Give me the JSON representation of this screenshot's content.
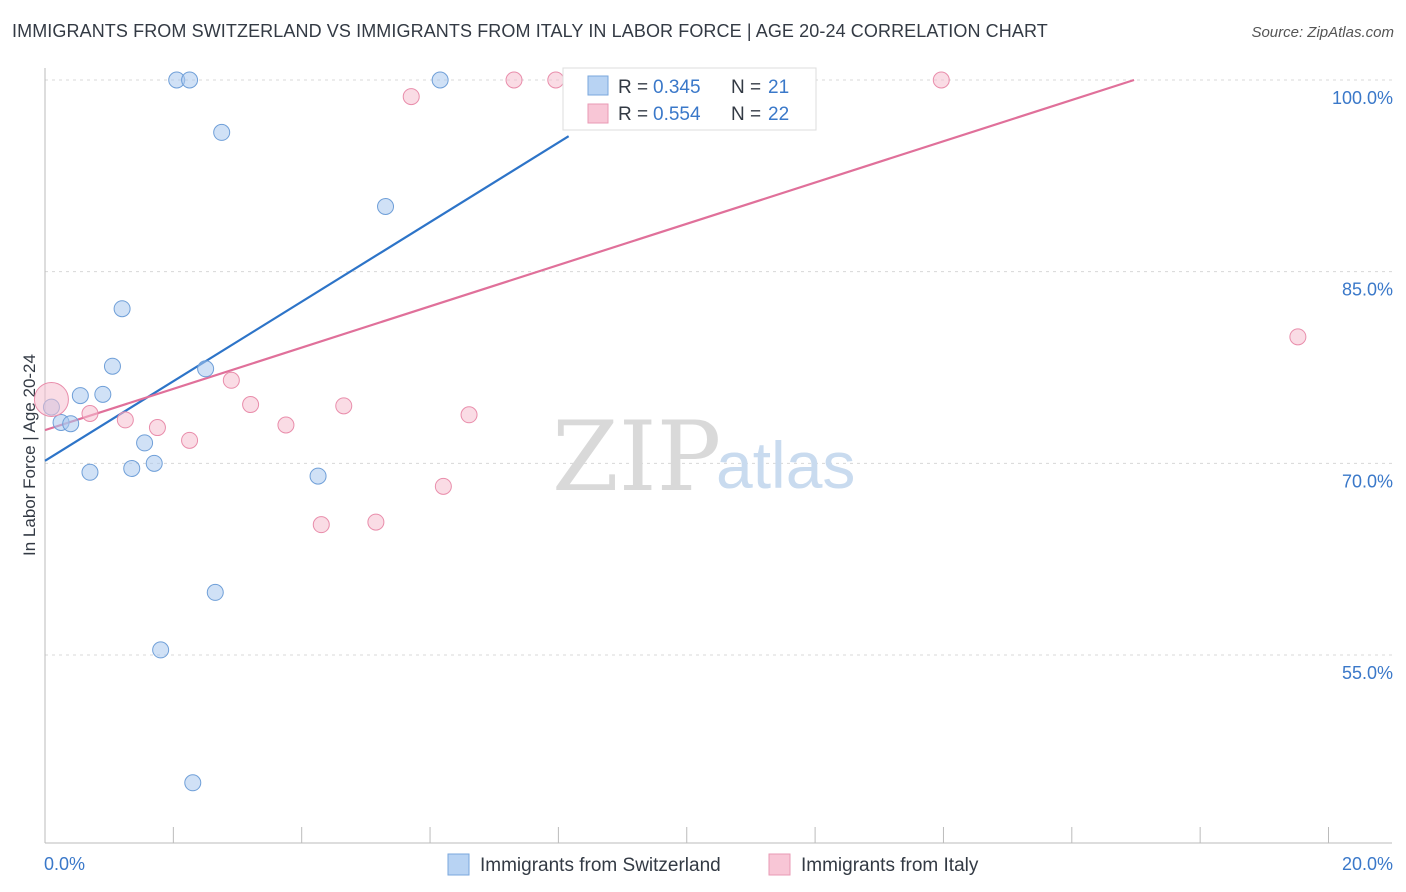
{
  "header": {
    "title": "IMMIGRANTS FROM SWITZERLAND VS IMMIGRANTS FROM ITALY IN LABOR FORCE | AGE 20-24 CORRELATION CHART",
    "source": "Source: ZipAtlas.com"
  },
  "watermark": {
    "zip": "ZIP",
    "atlas": "atlas"
  },
  "chart_data": {
    "type": "scatter",
    "ylabel": "In Labor Force | Age 20-24",
    "xlim": [
      0,
      20
    ],
    "ylim": [
      43,
      103
    ],
    "x_tick_labels": [
      {
        "value": 0,
        "label": "0.0%"
      },
      {
        "value": 20,
        "label": "20.0%"
      }
    ],
    "y_tick_labels": [
      {
        "value": 100,
        "label": "100.0%"
      },
      {
        "value": 85,
        "label": "85.0%"
      },
      {
        "value": 70,
        "label": "70.0%"
      },
      {
        "value": 55,
        "label": "55.0%"
      }
    ],
    "y_gridlines": [
      100,
      85,
      70,
      55
    ],
    "x_minor_ticks": [
      2,
      4,
      6,
      8,
      10,
      12,
      14,
      16,
      18,
      20
    ],
    "grid": true,
    "legend_position": "bottom",
    "series": [
      {
        "name": "Immigrants from Switzerland",
        "color": "#a9c9ef",
        "stroke": "#6f9fd8",
        "line_color": "#2d74c8",
        "R": "0.345",
        "N": "21",
        "points": [
          {
            "x": 2.05,
            "y": 100.0
          },
          {
            "x": 2.25,
            "y": 100.0
          },
          {
            "x": 6.15,
            "y": 100.0
          },
          {
            "x": 2.75,
            "y": 95.9
          },
          {
            "x": 5.3,
            "y": 90.1
          },
          {
            "x": 1.2,
            "y": 82.1
          },
          {
            "x": 1.05,
            "y": 77.6
          },
          {
            "x": 2.5,
            "y": 77.4
          },
          {
            "x": 0.55,
            "y": 75.3
          },
          {
            "x": 0.9,
            "y": 75.4
          },
          {
            "x": 0.1,
            "y": 74.4
          },
          {
            "x": 0.25,
            "y": 73.2
          },
          {
            "x": 0.4,
            "y": 73.1
          },
          {
            "x": 1.55,
            "y": 71.6
          },
          {
            "x": 1.7,
            "y": 70.0
          },
          {
            "x": 1.35,
            "y": 69.6
          },
          {
            "x": 0.7,
            "y": 69.3
          },
          {
            "x": 4.25,
            "y": 69.0
          },
          {
            "x": 2.65,
            "y": 59.9
          },
          {
            "x": 1.8,
            "y": 55.4
          },
          {
            "x": 2.3,
            "y": 45.0
          }
        ],
        "trend": {
          "x1": 0,
          "y1": 70.2,
          "x2": 8.15,
          "y2": 95.6
        }
      },
      {
        "name": "Immigrants from Italy",
        "color": "#f6bfd0",
        "stroke": "#e98dab",
        "line_color": "#e0709a",
        "R": "0.554",
        "N": "22",
        "points": [
          {
            "x": 0.1,
            "y": 75.0,
            "size": "large"
          },
          {
            "x": 7.3,
            "y": 100.0
          },
          {
            "x": 7.95,
            "y": 100.0
          },
          {
            "x": 8.35,
            "y": 100.0
          },
          {
            "x": 10.1,
            "y": 100.0
          },
          {
            "x": 11.2,
            "y": 100.0
          },
          {
            "x": 13.95,
            "y": 100.0
          },
          {
            "x": 5.7,
            "y": 98.7
          },
          {
            "x": 19.5,
            "y": 79.9
          },
          {
            "x": 2.9,
            "y": 76.5
          },
          {
            "x": 3.2,
            "y": 74.6
          },
          {
            "x": 4.65,
            "y": 74.5
          },
          {
            "x": 0.7,
            "y": 73.9
          },
          {
            "x": 6.6,
            "y": 73.8
          },
          {
            "x": 1.25,
            "y": 73.4
          },
          {
            "x": 1.75,
            "y": 72.8
          },
          {
            "x": 3.75,
            "y": 73.0
          },
          {
            "x": 2.25,
            "y": 71.8
          },
          {
            "x": 6.2,
            "y": 68.2
          },
          {
            "x": 5.15,
            "y": 65.4
          },
          {
            "x": 4.3,
            "y": 65.2
          },
          {
            "x": 9.8,
            "y": 100.0
          }
        ],
        "trend": {
          "x1": 0,
          "y1": 72.6,
          "x2": 16.95,
          "y2": 100.0
        }
      }
    ]
  },
  "legend": {
    "items": [
      {
        "label": "Immigrants from Switzerland"
      },
      {
        "label": "Immigrants from Italy"
      }
    ]
  },
  "statsbox": {
    "r_label": "R = ",
    "n_label": "N = "
  }
}
